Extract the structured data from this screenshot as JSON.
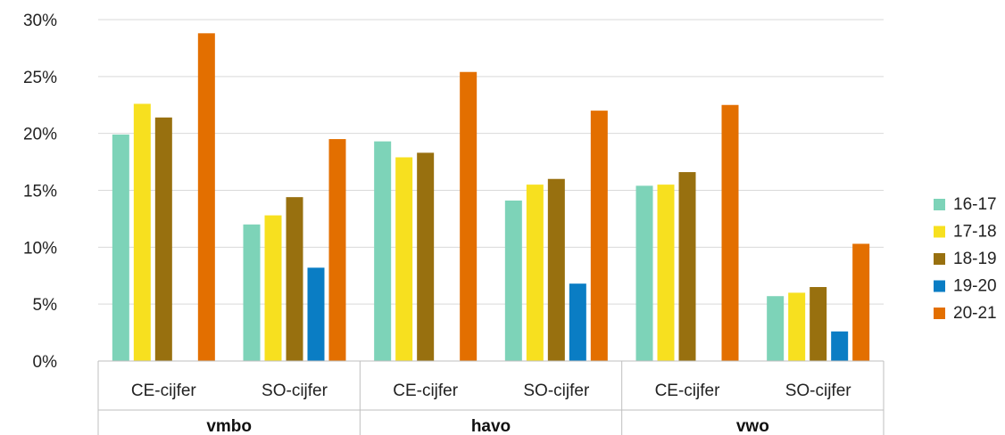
{
  "chart_data": {
    "type": "bar",
    "title": "",
    "xlabel": "",
    "ylabel": "",
    "ylim": [
      0,
      30
    ],
    "yticks": [
      "0%",
      "5%",
      "10%",
      "15%",
      "20%",
      "25%",
      "30%"
    ],
    "grid": true,
    "legend_position": "right",
    "groups": [
      {
        "label": "vmbo",
        "categories": [
          "CE-cijfer",
          "SO-cijfer"
        ]
      },
      {
        "label": "havo",
        "categories": [
          "CE-cijfer",
          "SO-cijfer"
        ]
      },
      {
        "label": "vwo",
        "categories": [
          "CE-cijfer",
          "SO-cijfer"
        ]
      }
    ],
    "categories": [
      "vmbo CE-cijfer",
      "vmbo SO-cijfer",
      "havo CE-cijfer",
      "havo SO-cijfer",
      "vwo CE-cijfer",
      "vwo SO-cijfer"
    ],
    "series": [
      {
        "name": "16-17",
        "color": "#7dd3b8",
        "values": [
          19.9,
          12.0,
          19.3,
          14.1,
          15.4,
          5.7
        ]
      },
      {
        "name": "17-18",
        "color": "#f7e01f",
        "values": [
          22.6,
          12.8,
          17.9,
          15.5,
          15.5,
          6.0
        ]
      },
      {
        "name": "18-19",
        "color": "#98700f",
        "values": [
          21.4,
          14.4,
          18.3,
          16.0,
          16.6,
          6.5
        ]
      },
      {
        "name": "19-20",
        "color": "#0a7dc4",
        "values": [
          null,
          8.2,
          null,
          6.8,
          null,
          2.6
        ]
      },
      {
        "name": "20-21",
        "color": "#e36f00",
        "values": [
          28.8,
          19.5,
          25.4,
          22.0,
          22.5,
          10.3
        ]
      }
    ]
  }
}
